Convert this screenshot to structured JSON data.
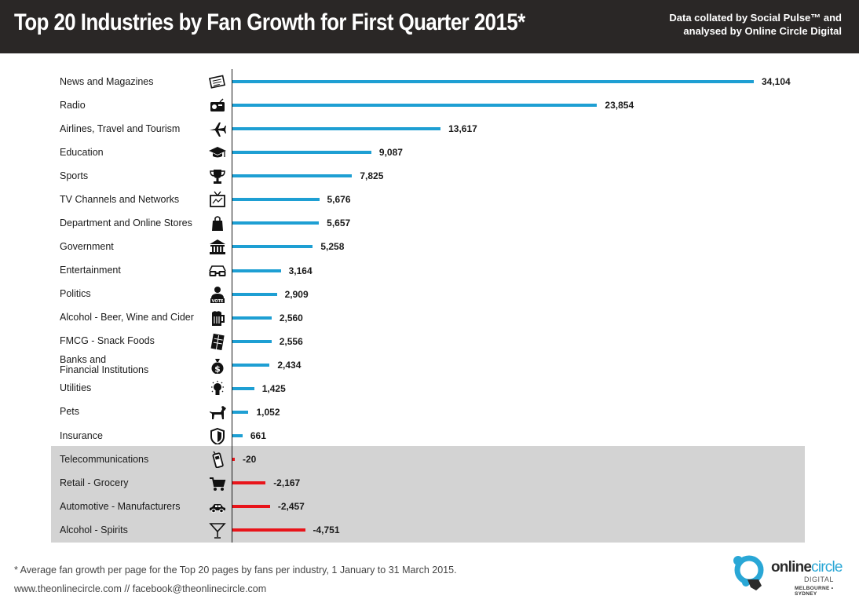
{
  "header": {
    "title": "Top 20 Industries by Fan Growth for First Quarter 2015*",
    "credit_line1": "Data collated by Social Pulse™ and",
    "credit_line2": "analysed by Online Circle Digital"
  },
  "colors": {
    "header_bg": "#2a2726",
    "positive_bar": "#1e9fd3",
    "negative_bar": "#e8141a",
    "negative_panel": "#d3d3d3",
    "logo_accent": "#29a7d6"
  },
  "chart_data": {
    "type": "bar",
    "orientation": "horizontal",
    "title": "Top 20 Industries by Fan Growth for First Quarter 2015*",
    "xlabel": "",
    "ylabel": "",
    "grid": false,
    "legend": "none",
    "xlim": [
      -4751,
      34104
    ],
    "categories": [
      "News and Magazines",
      "Radio",
      "Airlines, Travel and Tourism",
      "Education",
      "Sports",
      "TV Channels and Networks",
      "Department and Online Stores",
      "Government",
      "Entertainment",
      "Politics",
      "Alcohol - Beer, Wine and Cider",
      "FMCG - Snack Foods",
      "Banks and\nFinancial Institutions",
      "Utilities",
      "Pets",
      "Insurance",
      "Telecommunications",
      "Retail - Grocery",
      "Automotive - Manufacturers",
      "Alcohol - Spirits"
    ],
    "values": [
      34104,
      23854,
      13617,
      9087,
      7825,
      5676,
      5657,
      5258,
      3164,
      2909,
      2560,
      2556,
      2434,
      1425,
      1052,
      661,
      -20,
      -2167,
      -2457,
      -4751
    ],
    "value_labels": [
      "34,104",
      "23,854",
      "13,617",
      "9,087",
      "7,825",
      "5,676",
      "5,657",
      "5,258",
      "3,164",
      "2,909",
      "2,560",
      "2,556",
      "2,434",
      "1,425",
      "1,052",
      "661",
      "-20",
      "-2,167",
      "-2,457",
      "-4,751"
    ],
    "icons": [
      "newspaper-icon",
      "radio-icon",
      "airplane-icon",
      "graduation-cap-icon",
      "trophy-icon",
      "tv-icon",
      "shopping-bag-icon",
      "government-building-icon",
      "3d-glasses-icon",
      "vote-person-icon",
      "beer-mug-icon",
      "chocolate-bar-icon",
      "money-bag-icon",
      "light-bulb-icon",
      "dog-icon",
      "shield-icon",
      "mobile-phone-icon",
      "shopping-cart-icon",
      "car-icon",
      "cocktail-glass-icon"
    ]
  },
  "footer": {
    "footnote": "* Average fan growth per page for the Top 20 pages by fans per industry, 1 January to 31 March 2015.",
    "website": "www.theonlinecircle.com // facebook@theonlinecircle.com"
  },
  "logo": {
    "name_part1": "online",
    "name_part2": "circle",
    "sub": "DIGITAL",
    "cities": "MELBOURNE • SYDNEY"
  }
}
